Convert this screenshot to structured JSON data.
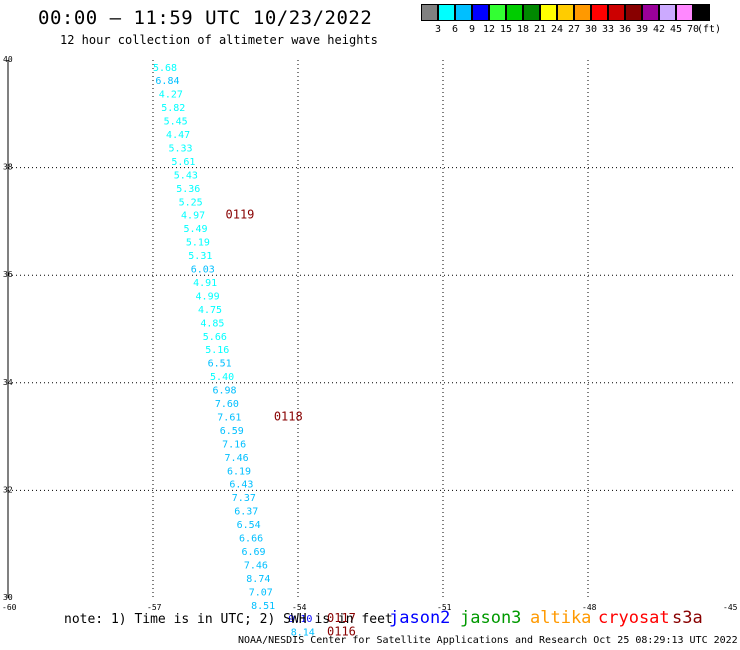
{
  "header": {
    "title": "00:00 – 11:59 UTC 10/23/2022",
    "subtitle": "12 hour collection of altimeter wave heights"
  },
  "legend": {
    "ticks": [
      "3",
      "6",
      "9",
      "12",
      "15",
      "18",
      "21",
      "24",
      "27",
      "30",
      "33",
      "36",
      "39",
      "42",
      "45",
      "70"
    ],
    "unit": "(ft)",
    "colors": [
      "#808080",
      "#00ffff",
      "#00bfff",
      "#0000ff",
      "#33ff33",
      "#00cc00",
      "#008800",
      "#ffff00",
      "#ffcc00",
      "#ff9900",
      "#ff0000",
      "#cc0000",
      "#880000",
      "#990099",
      "#ccaaff",
      "#ff88ff",
      "#000000"
    ]
  },
  "footer": {
    "note": "note: 1) Time is in UTC; 2) SWH is in feet",
    "satellites": [
      {
        "name": "jason2",
        "color": "#0000ff"
      },
      {
        "name": "jason3",
        "color": "#009900"
      },
      {
        "name": "altika",
        "color": "#ff9900"
      },
      {
        "name": "cryosat",
        "color": "#ff0000"
      },
      {
        "name": "s3a",
        "color": "#880000"
      }
    ],
    "credit": "NOAA/NESDIS Center for Satellite Applications and Research   Oct 25 08:29:13 UTC 2022"
  },
  "chart_data": {
    "type": "scatter",
    "xlim": [
      -60,
      -45
    ],
    "ylim": [
      30,
      40
    ],
    "x_ticks": [
      "-60",
      "-57",
      "-54",
      "-51",
      "-48",
      "-45"
    ],
    "y_ticks": [
      "30",
      "32",
      "34",
      "36",
      "38",
      "40"
    ],
    "grid": "dotted at x=-57,-54,-51,-48 and y=32,34,36,38",
    "series": [
      {
        "points": [
          {
            "x": -57.0,
            "y": 39.8,
            "label": "5.68"
          },
          {
            "x": -56.95,
            "y": 39.55,
            "label": "6.84"
          },
          {
            "x": -56.88,
            "y": 39.3,
            "label": "4.27"
          },
          {
            "x": -56.83,
            "y": 39.05,
            "label": "5.82"
          },
          {
            "x": -56.78,
            "y": 38.8,
            "label": "5.45"
          },
          {
            "x": -56.73,
            "y": 38.55,
            "label": "4.47"
          },
          {
            "x": -56.68,
            "y": 38.3,
            "label": "5.33"
          },
          {
            "x": -56.62,
            "y": 38.05,
            "label": "5.61"
          },
          {
            "x": -56.57,
            "y": 37.8,
            "label": "5.43"
          },
          {
            "x": -56.52,
            "y": 37.55,
            "label": "5.36"
          },
          {
            "x": -56.47,
            "y": 37.3,
            "label": "5.25"
          },
          {
            "x": -56.42,
            "y": 37.05,
            "label": "4.97"
          },
          {
            "x": -56.37,
            "y": 36.8,
            "label": "5.49"
          },
          {
            "x": -56.32,
            "y": 36.55,
            "label": "5.19"
          },
          {
            "x": -56.27,
            "y": 36.3,
            "label": "5.31"
          },
          {
            "x": -56.22,
            "y": 36.05,
            "label": "6.03"
          },
          {
            "x": -56.17,
            "y": 35.8,
            "label": "4.91"
          },
          {
            "x": -56.12,
            "y": 35.55,
            "label": "4.99"
          },
          {
            "x": -56.07,
            "y": 35.3,
            "label": "4.75"
          },
          {
            "x": -56.02,
            "y": 35.05,
            "label": "4.85"
          },
          {
            "x": -55.97,
            "y": 34.8,
            "label": "5.66"
          },
          {
            "x": -55.92,
            "y": 34.55,
            "label": "5.16"
          },
          {
            "x": -55.87,
            "y": 34.3,
            "label": "6.51"
          },
          {
            "x": -55.82,
            "y": 34.05,
            "label": "5.40"
          },
          {
            "x": -55.77,
            "y": 33.8,
            "label": "6.98"
          },
          {
            "x": -55.72,
            "y": 33.55,
            "label": "7.60"
          },
          {
            "x": -55.67,
            "y": 33.3,
            "label": "7.61"
          },
          {
            "x": -55.62,
            "y": 33.05,
            "label": "6.59"
          },
          {
            "x": -55.57,
            "y": 32.8,
            "label": "7.16"
          },
          {
            "x": -55.52,
            "y": 32.55,
            "label": "7.46"
          },
          {
            "x": -55.47,
            "y": 32.3,
            "label": "6.19"
          },
          {
            "x": -55.42,
            "y": 32.05,
            "label": "6.43"
          },
          {
            "x": -55.37,
            "y": 31.8,
            "label": "7.37"
          },
          {
            "x": -55.32,
            "y": 31.55,
            "label": "6.37"
          },
          {
            "x": -55.27,
            "y": 31.3,
            "label": "6.54"
          },
          {
            "x": -55.22,
            "y": 31.05,
            "label": "6.66"
          },
          {
            "x": -55.17,
            "y": 30.8,
            "label": "6.69"
          },
          {
            "x": -55.12,
            "y": 30.55,
            "label": "7.46"
          },
          {
            "x": -55.07,
            "y": 30.3,
            "label": "8.74"
          },
          {
            "x": -55.02,
            "y": 30.05,
            "label": "7.07"
          },
          {
            "x": -54.97,
            "y": 29.8,
            "label": "8.51"
          },
          {
            "x": -54.2,
            "y": 29.55,
            "label": "9.10"
          },
          {
            "x": -54.15,
            "y": 29.3,
            "label": "8.14"
          }
        ]
      }
    ],
    "annotations": [
      {
        "text": "0119",
        "x": -55.5,
        "y": 37.05,
        "color": "#880000"
      },
      {
        "text": "0118",
        "x": -54.5,
        "y": 33.3,
        "color": "#880000"
      },
      {
        "text": "0117",
        "x": -53.4,
        "y": 29.55,
        "color": "#880000"
      },
      {
        "text": "0116",
        "x": -53.4,
        "y": 29.3,
        "color": "#880000"
      }
    ]
  }
}
